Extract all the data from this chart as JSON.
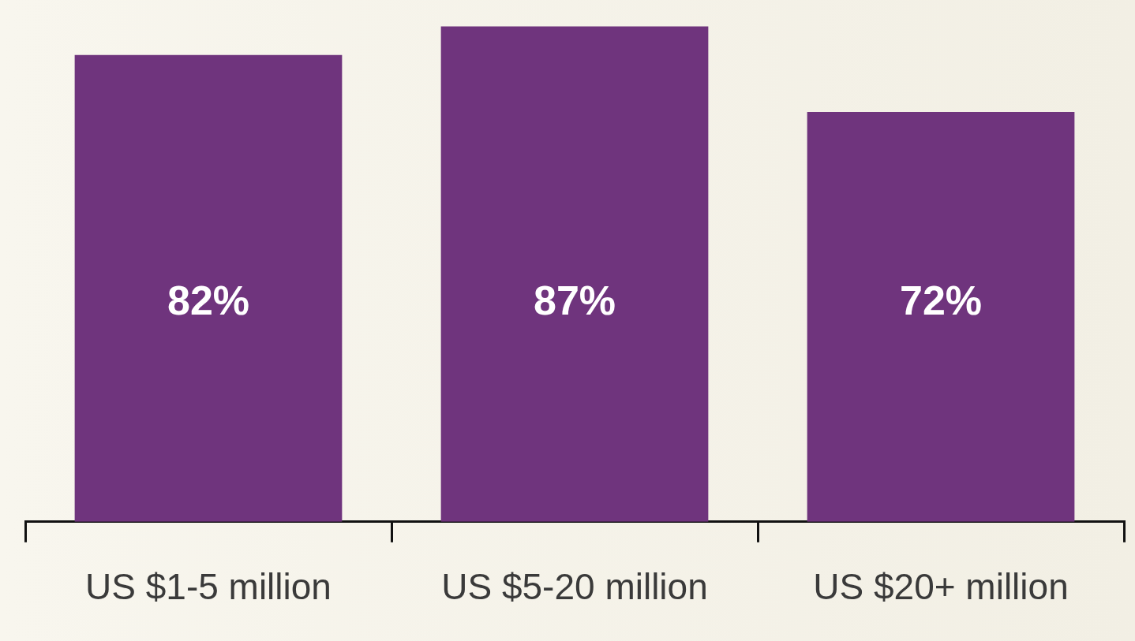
{
  "chart_data": {
    "type": "bar",
    "categories": [
      "US $1-5 million",
      "US $5-20 million",
      "US $20+ million"
    ],
    "values": [
      82,
      87,
      72
    ],
    "color": "#6f347d",
    "value_labels": [
      "82%",
      "87%",
      "72%"
    ],
    "grid": false,
    "legend": false
  }
}
